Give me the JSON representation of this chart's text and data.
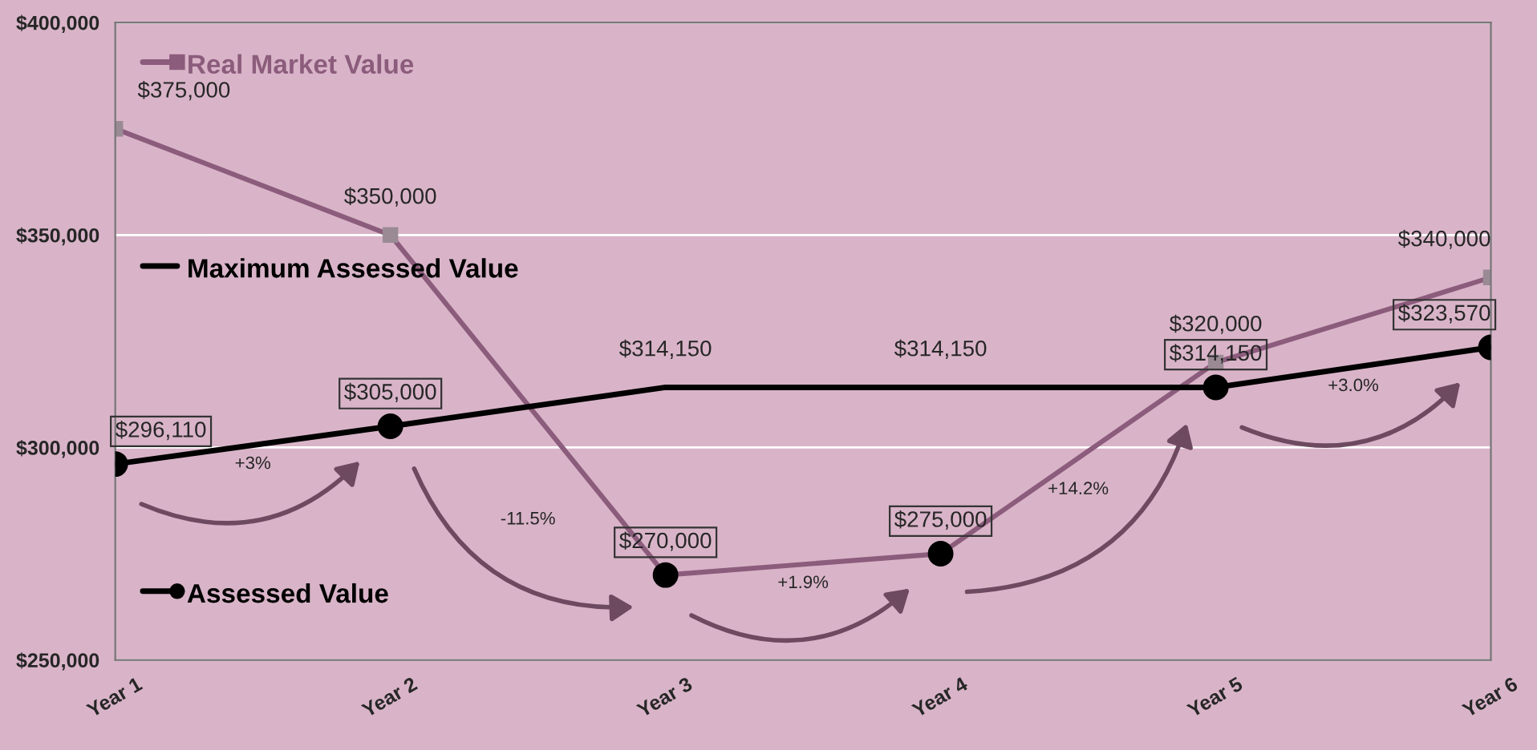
{
  "chart_data": {
    "type": "line",
    "categories": [
      "Year 1",
      "Year 2",
      "Year 3",
      "Year 4",
      "Year 5",
      "Year 6"
    ],
    "series": [
      {
        "name": "Real Market Value",
        "color": "#8c5c7c",
        "marker": "square",
        "values": [
          375000,
          350000,
          270000,
          275000,
          320000,
          340000
        ],
        "value_labels": [
          "$375,000",
          "$350,000",
          null,
          null,
          "$320,000",
          "$340,000"
        ]
      },
      {
        "name": "Maximum Assessed Value",
        "color": "#000000",
        "marker": "none",
        "values": [
          296110,
          305000,
          314150,
          314150,
          314150,
          323570
        ],
        "value_labels": [
          null,
          null,
          "$314,150",
          "$314,150",
          null,
          null
        ]
      },
      {
        "name": "Assessed Value",
        "type": "scatter",
        "color": "#000000",
        "marker": "circle",
        "values": [
          296110,
          305000,
          270000,
          275000,
          314150,
          323570
        ],
        "value_labels": [
          "$296,110",
          "$305,000",
          "$270,000",
          "$275,000",
          "$314,150",
          "$323,570"
        ]
      }
    ],
    "ylim": [
      250000,
      400000
    ],
    "yticks": [
      {
        "value": 250000,
        "label": "$250,000"
      },
      {
        "value": 300000,
        "label": "$300,000"
      },
      {
        "value": 350000,
        "label": "$350,000"
      },
      {
        "value": 400000,
        "label": "$400,000"
      }
    ],
    "grid": "y",
    "legend": "left",
    "annotations": [
      "+3%",
      "-11.5%",
      "+1.9%",
      "+14.2%",
      "+3.0%"
    ]
  }
}
